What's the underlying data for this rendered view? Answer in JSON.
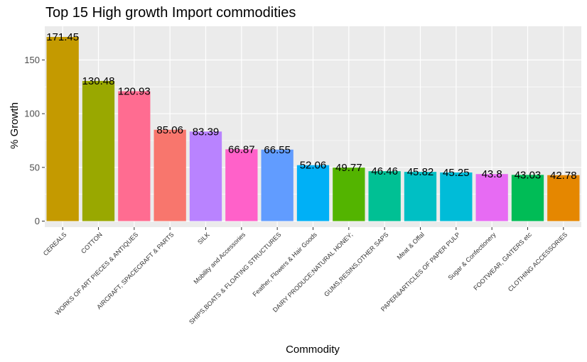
{
  "chart_data": {
    "type": "bar",
    "title": "Top 15 High growth Import commodities",
    "xlabel": "Commodity",
    "ylabel": "% Growth",
    "ylim": [
      0,
      180
    ],
    "yticks": [
      0,
      50,
      100,
      150
    ],
    "grid": true,
    "legend": "none",
    "categories": [
      "CEREALS",
      "COTTON",
      "WORKS OF ART PIECES & ANTIQUES",
      "AIRCRAFT, SPACECRAFT & PARTS",
      "SILK",
      "Mobility and Accessories",
      "SHIPS,BOATS & FLOATING STRUCTURES",
      "Feather, Flowers & Hair Goods",
      "DAIRY PRODUCE;NATURAL HONEY;",
      "GUMS,RESINS,OTHER SAPS",
      "Meat & Offal",
      "PAPER&ARTICLES OF PAPER PULP",
      "Sugar & Confectionery",
      "FOOTWEAR, GAITERS etc",
      "CLOTHING ACCESSORIES"
    ],
    "values": [
      171.45,
      130.48,
      120.93,
      85.06,
      83.39,
      66.87,
      66.55,
      52.06,
      49.77,
      46.46,
      45.82,
      45.25,
      43.8,
      43.03,
      42.78
    ],
    "data_labels": [
      "171.45",
      "130.48",
      "120.93",
      "85.06",
      "83.39",
      "66.87",
      "66.55",
      "52.06",
      "49.77",
      "46.46",
      "45.82",
      "45.25",
      "43.8",
      "43.03",
      "42.78"
    ],
    "colors": [
      "#C49A00",
      "#99A800",
      "#FF6C91",
      "#F8766D",
      "#B983FF",
      "#FF61C9",
      "#619CFF",
      "#00B0F6",
      "#53B400",
      "#00C094",
      "#00BFC4",
      "#00BCD8",
      "#E76BF3",
      "#00BC56",
      "#E58700"
    ],
    "panel_background": "#EBEBEB",
    "grid_color": "#FFFFFF"
  }
}
